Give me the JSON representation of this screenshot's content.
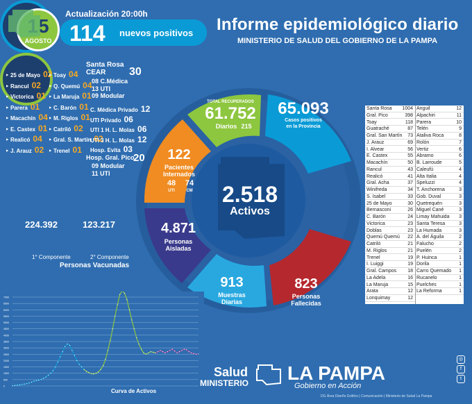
{
  "header": {
    "day": "15",
    "month": "AGOSTO",
    "update_label": "Actualización 20:00h",
    "new_positives": "114",
    "new_positives_label": "nuevos positivos",
    "title": "Informe epidemiológico diario",
    "subtitle": "MINISTERIO DE SALUD DEL GOBIERNO DE LA PAMPA"
  },
  "internados_left": [
    {
      "name": "25 de Mayo",
      "value": "02"
    },
    {
      "name": "Rancul",
      "value": "02"
    },
    {
      "name": "Victorica",
      "value": "01"
    },
    {
      "name": "Parera",
      "value": "01"
    },
    {
      "name": "Macachín",
      "value": "04"
    },
    {
      "name": "E. Castex",
      "value": "01"
    },
    {
      "name": "Realicó",
      "value": "04"
    },
    {
      "name": "J. Arauz",
      "value": "02"
    }
  ],
  "internados_mid": [
    {
      "name": "Toay",
      "value": "04"
    },
    {
      "name": "Q. Quemú",
      "value": "04"
    },
    {
      "name": "La Maruja",
      "value": "01"
    },
    {
      "name": "C. Barón",
      "value": "01"
    },
    {
      "name": "M. Riglos",
      "value": "01"
    },
    {
      "name": "Catriló",
      "value": "02"
    },
    {
      "name": "Gral. S. Martín",
      "value": "02"
    },
    {
      "name": "Trenel",
      "value": "01"
    }
  ],
  "hospitals": {
    "santa_rosa": "Santa Rosa",
    "cear": "CEAR",
    "cear_total": "30",
    "cear_detail": [
      {
        "n": "08",
        "t": "C.Médica"
      },
      {
        "n": "13",
        "t": "UTI"
      },
      {
        "n": "09",
        "t": "Modular"
      }
    ],
    "rows": [
      {
        "name": "C. Médica Privado",
        "value": "12"
      },
      {
        "name": "UTI Privado",
        "value": "06"
      },
      {
        "name": "UTI 1 H. L. Molas",
        "value": "06"
      },
      {
        "name": "UTI 3 H. L. Molas",
        "value": "12"
      },
      {
        "name": "Hosp. Evita",
        "value": "03"
      }
    ],
    "gral_pico": "Hosp. Gral. Pico",
    "gral_pico_total": "20",
    "gral_pico_detail": [
      {
        "n": "09",
        "t": "Modular"
      },
      {
        "n": "11",
        "t": "UTI"
      }
    ]
  },
  "vaccines": {
    "first": "224.392",
    "first_label": "1° Componente",
    "second": "123.217",
    "second_label": "2° Componente",
    "title": "Personas Vacunadas"
  },
  "wheel": {
    "recovered_label": "TOTAL RECUPERADOS",
    "recovered": "61.752",
    "recovered_daily_label": "Diarios",
    "recovered_daily": "215",
    "positives": "65.093",
    "positives_label_1": "Casos positivos",
    "positives_label_2": "en la Provincia",
    "interned": "122",
    "interned_label_1": "Pacientes",
    "interned_label_2": "Internados",
    "uti": "48",
    "uti_label": "UTI",
    "cm": "74",
    "cm_label": "CM",
    "active": "2.518",
    "active_label": "Activos",
    "isolated": "4.871",
    "isolated_label_1": "Personas",
    "isolated_label_2": "Aisladas",
    "samples": "913",
    "samples_label_1": "Muestras",
    "samples_label_2": "Diarias",
    "deaths": "823",
    "deaths_label_1": "Personas",
    "deaths_label_2": "Fallecidas"
  },
  "table_left": [
    {
      "name": "Santa Rosa",
      "value": "1004"
    },
    {
      "name": "Gral. Pico",
      "value": "398"
    },
    {
      "name": "Toay",
      "value": "118"
    },
    {
      "name": "Guatraché",
      "value": "87"
    },
    {
      "name": "Gral. San Martín",
      "value": "73"
    },
    {
      "name": "J. Arauz",
      "value": "69"
    },
    {
      "name": "I. Alvear",
      "value": "56"
    },
    {
      "name": "E. Castex",
      "value": "55"
    },
    {
      "name": "Macachín",
      "value": "50"
    },
    {
      "name": "Rancul",
      "value": "43"
    },
    {
      "name": "Realicó",
      "value": "41"
    },
    {
      "name": "Gral. Acha",
      "value": "37"
    },
    {
      "name": "Winifreda",
      "value": "34"
    },
    {
      "name": "S. Isabel",
      "value": "33"
    },
    {
      "name": "25 de Mayo",
      "value": "30"
    },
    {
      "name": "Bernasconi",
      "value": "26"
    },
    {
      "name": "C. Barón",
      "value": "24"
    },
    {
      "name": "Victorica",
      "value": "23"
    },
    {
      "name": "Doblas",
      "value": "23"
    },
    {
      "name": "Quemú Quemú",
      "value": "22"
    },
    {
      "name": "Catriló",
      "value": "21"
    },
    {
      "name": "M. Riglos",
      "value": "21"
    },
    {
      "name": "Trenel",
      "value": "19"
    },
    {
      "name": "I. Luiggi",
      "value": "19"
    },
    {
      "name": "Gral. Campos",
      "value": "18"
    },
    {
      "name": "La Adela",
      "value": "16"
    },
    {
      "name": "La Maruja",
      "value": "15"
    },
    {
      "name": "Arata",
      "value": "12"
    },
    {
      "name": "Lonquimay",
      "value": "12"
    }
  ],
  "table_right": [
    {
      "name": "Anguil",
      "value": "12"
    },
    {
      "name": "Alpachiri",
      "value": "11"
    },
    {
      "name": "Parera",
      "value": "10"
    },
    {
      "name": "Telén",
      "value": "9"
    },
    {
      "name": "Ataliva Roca",
      "value": "8"
    },
    {
      "name": "Rolón",
      "value": "7"
    },
    {
      "name": "Vertiz",
      "value": "6"
    },
    {
      "name": "Abramo",
      "value": "6"
    },
    {
      "name": "B. Larroude",
      "value": "5"
    },
    {
      "name": "Caleufú",
      "value": "4"
    },
    {
      "name": "Alta Italia",
      "value": "4"
    },
    {
      "name": "Speluzzi",
      "value": "4"
    },
    {
      "name": "T. Anchorena",
      "value": "3"
    },
    {
      "name": "Gob. Duval",
      "value": "3"
    },
    {
      "name": "Quetrequén",
      "value": "3"
    },
    {
      "name": "Miguel Cané",
      "value": "3"
    },
    {
      "name": "Limay Mahuida",
      "value": "3"
    },
    {
      "name": "Santa Teresa",
      "value": "3"
    },
    {
      "name": "La Humada",
      "value": "3"
    },
    {
      "name": "A. del Águila",
      "value": "2"
    },
    {
      "name": "Falucho",
      "value": "2"
    },
    {
      "name": "Puelén",
      "value": "2"
    },
    {
      "name": "P. Huinca",
      "value": "1"
    },
    {
      "name": "Dorila",
      "value": "1"
    },
    {
      "name": "Carro Quemado",
      "value": "1"
    },
    {
      "name": "Rucanelo",
      "value": "1"
    },
    {
      "name": "Puelches",
      "value": "1"
    },
    {
      "name": "La Reforma",
      "value": "1"
    }
  ],
  "chart_data": {
    "type": "line",
    "title": "Curva de Activos",
    "ylim": [
      0,
      7000
    ],
    "yticks": [
      "7000",
      "6500",
      "6000",
      "5500",
      "5000",
      "4500",
      "4000",
      "3500",
      "3000",
      "2500",
      "2000",
      "1500",
      "1000",
      "500",
      "0"
    ],
    "series_colors": [
      "#0a9bd6",
      "#8dc63f",
      "#c03c9a"
    ],
    "values": [
      20,
      40,
      60,
      80,
      120,
      150,
      180,
      230,
      300,
      380,
      420,
      460,
      520,
      600,
      700,
      850,
      1000,
      1200,
      1500,
      1900,
      2300,
      2700,
      3100,
      3300,
      3200,
      2800,
      2400,
      2000,
      1700,
      1500,
      1300,
      1150,
      1050,
      980,
      950,
      1000,
      1100,
      1300,
      1600,
      2100,
      2800,
      3600,
      4500,
      5500,
      6400,
      7200,
      7500,
      7300,
      6800,
      6000,
      5200,
      4500,
      3800,
      3300,
      2900,
      2600,
      2500,
      2600,
      2700,
      2650,
      2600,
      2700,
      2800,
      2700,
      2600,
      2700,
      2800,
      2900,
      2750,
      2600,
      2700,
      2800,
      2900,
      2850,
      2700,
      2600,
      2550,
      2500,
      2518
    ],
    "segments": [
      [
        0,
        30,
        0
      ],
      [
        30,
        60,
        1
      ],
      [
        60,
        78,
        2
      ]
    ]
  },
  "footer": {
    "salud": "Salud",
    "ministerio": "MINISTERIO",
    "la_pampa": "LA PAMPA",
    "gobierno": "Gobierno en Acción",
    "credits": "DG Área Diseño Gráfico | Comunicación | Ministerio de Salud La Pampa"
  },
  "icons": [
    "instagram-icon",
    "facebook-icon",
    "twitter-icon"
  ]
}
